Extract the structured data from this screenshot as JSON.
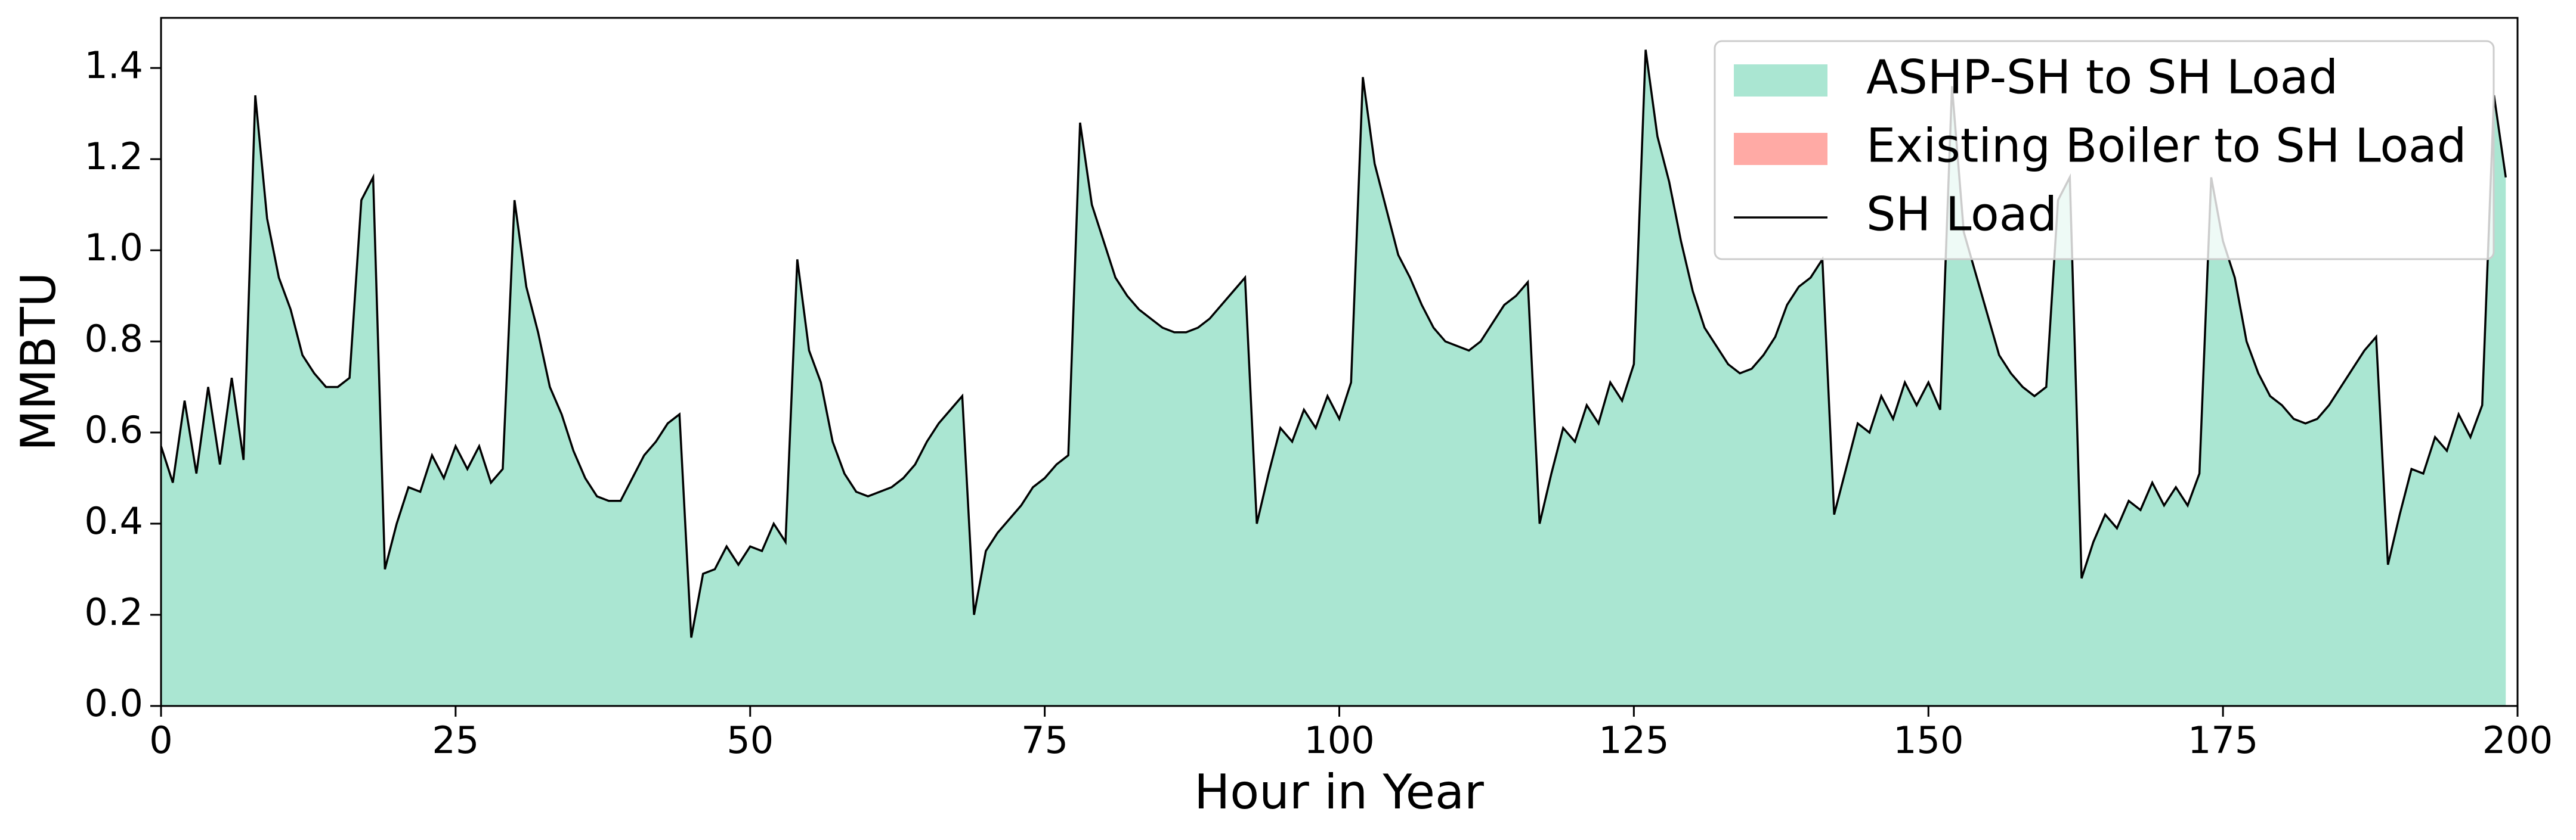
{
  "chart_data": {
    "type": "area",
    "xlabel": "Hour in Year",
    "ylabel": "MMBTU",
    "x": [
      0,
      1,
      2,
      3,
      4,
      5,
      6,
      7,
      8,
      9,
      10,
      11,
      12,
      13,
      14,
      15,
      16,
      17,
      18,
      19,
      20,
      21,
      22,
      23,
      24,
      25,
      26,
      27,
      28,
      29,
      30,
      31,
      32,
      33,
      34,
      35,
      36,
      37,
      38,
      39,
      40,
      41,
      42,
      43,
      44,
      45,
      46,
      47,
      48,
      49,
      50,
      51,
      52,
      53,
      54,
      55,
      56,
      57,
      58,
      59,
      60,
      61,
      62,
      63,
      64,
      65,
      66,
      67,
      68,
      69,
      70,
      71,
      72,
      73,
      74,
      75,
      76,
      77,
      78,
      79,
      80,
      81,
      82,
      83,
      84,
      85,
      86,
      87,
      88,
      89,
      90,
      91,
      92,
      93,
      94,
      95,
      96,
      97,
      98,
      99,
      100,
      101,
      102,
      103,
      104,
      105,
      106,
      107,
      108,
      109,
      110,
      111,
      112,
      113,
      114,
      115,
      116,
      117,
      118,
      119,
      120,
      121,
      122,
      123,
      124,
      125,
      126,
      127,
      128,
      129,
      130,
      131,
      132,
      133,
      134,
      135,
      136,
      137,
      138,
      139,
      140,
      141,
      142,
      143,
      144,
      145,
      146,
      147,
      148,
      149,
      150,
      151,
      152,
      153,
      154,
      155,
      156,
      157,
      158,
      159,
      160,
      161,
      162,
      163,
      164,
      165,
      166,
      167,
      168,
      169,
      170,
      171,
      172,
      173,
      174,
      175,
      176,
      177,
      178,
      179,
      180,
      181,
      182,
      183,
      184,
      185,
      186,
      187,
      188,
      189,
      190,
      191,
      192,
      193,
      194,
      195,
      196,
      197,
      198,
      199
    ],
    "series": [
      {
        "name": "ASHP-SH to SH Load",
        "style": "area",
        "color": "#aae6d2",
        "values": [
          0.57,
          0.49,
          0.67,
          0.51,
          0.7,
          0.53,
          0.72,
          0.54,
          1.34,
          1.07,
          0.94,
          0.87,
          0.77,
          0.73,
          0.7,
          0.7,
          0.72,
          1.11,
          1.16,
          0.3,
          0.4,
          0.48,
          0.47,
          0.55,
          0.5,
          0.57,
          0.52,
          0.57,
          0.49,
          0.52,
          1.11,
          0.92,
          0.82,
          0.7,
          0.64,
          0.56,
          0.5,
          0.46,
          0.45,
          0.45,
          0.5,
          0.55,
          0.58,
          0.62,
          0.64,
          0.15,
          0.29,
          0.3,
          0.35,
          0.31,
          0.35,
          0.34,
          0.4,
          0.36,
          0.98,
          0.78,
          0.71,
          0.58,
          0.51,
          0.47,
          0.46,
          0.47,
          0.48,
          0.5,
          0.53,
          0.58,
          0.62,
          0.65,
          0.68,
          0.2,
          0.34,
          0.38,
          0.41,
          0.44,
          0.48,
          0.5,
          0.53,
          0.55,
          1.28,
          1.1,
          1.02,
          0.94,
          0.9,
          0.87,
          0.85,
          0.83,
          0.82,
          0.82,
          0.83,
          0.85,
          0.88,
          0.91,
          0.94,
          0.4,
          0.51,
          0.61,
          0.58,
          0.65,
          0.61,
          0.68,
          0.63,
          0.71,
          1.38,
          1.19,
          1.09,
          0.99,
          0.94,
          0.88,
          0.83,
          0.8,
          0.79,
          0.78,
          0.8,
          0.84,
          0.88,
          0.9,
          0.93,
          0.4,
          0.51,
          0.61,
          0.58,
          0.66,
          0.62,
          0.71,
          0.67,
          0.75,
          1.44,
          1.25,
          1.15,
          1.02,
          0.91,
          0.83,
          0.79,
          0.75,
          0.73,
          0.74,
          0.77,
          0.81,
          0.88,
          0.92,
          0.94,
          0.98,
          0.42,
          0.52,
          0.62,
          0.6,
          0.68,
          0.63,
          0.71,
          0.66,
          0.71,
          0.65,
          1.36,
          1.04,
          0.95,
          0.86,
          0.77,
          0.73,
          0.7,
          0.68,
          0.7,
          1.11,
          1.16,
          0.28,
          0.36,
          0.42,
          0.39,
          0.45,
          0.43,
          0.49,
          0.44,
          0.48,
          0.44,
          0.51,
          1.16,
          1.02,
          0.94,
          0.8,
          0.73,
          0.68,
          0.66,
          0.63,
          0.62,
          0.63,
          0.66,
          0.7,
          0.74,
          0.78,
          0.81,
          0.31,
          0.42,
          0.52,
          0.51,
          0.59,
          0.56,
          0.64,
          0.59,
          0.66,
          1.34,
          1.16
        ]
      },
      {
        "name": "Existing Boiler to SH Load",
        "style": "area",
        "color": "#ffaaa5",
        "values": [
          0,
          0,
          0,
          0,
          0,
          0,
          0,
          0,
          0,
          0,
          0,
          0,
          0,
          0,
          0,
          0,
          0,
          0,
          0,
          0,
          0,
          0,
          0,
          0,
          0,
          0,
          0,
          0,
          0,
          0,
          0,
          0,
          0,
          0,
          0,
          0,
          0,
          0,
          0,
          0,
          0,
          0,
          0,
          0,
          0,
          0,
          0,
          0,
          0,
          0,
          0,
          0,
          0,
          0,
          0,
          0,
          0,
          0,
          0,
          0,
          0,
          0,
          0,
          0,
          0,
          0,
          0,
          0,
          0,
          0,
          0,
          0,
          0,
          0,
          0,
          0,
          0,
          0,
          0,
          0,
          0,
          0,
          0,
          0,
          0,
          0,
          0,
          0,
          0,
          0,
          0,
          0,
          0,
          0,
          0,
          0,
          0,
          0,
          0,
          0,
          0,
          0,
          0,
          0,
          0,
          0,
          0,
          0,
          0,
          0,
          0,
          0,
          0,
          0,
          0,
          0,
          0,
          0,
          0,
          0,
          0,
          0,
          0,
          0,
          0,
          0,
          0,
          0,
          0,
          0,
          0,
          0,
          0,
          0,
          0,
          0,
          0,
          0,
          0,
          0,
          0,
          0,
          0,
          0,
          0,
          0,
          0,
          0,
          0,
          0,
          0,
          0,
          0,
          0,
          0,
          0,
          0,
          0,
          0,
          0,
          0,
          0,
          0,
          0,
          0,
          0,
          0,
          0,
          0,
          0,
          0,
          0,
          0,
          0,
          0,
          0,
          0,
          0,
          0,
          0,
          0,
          0,
          0,
          0,
          0,
          0,
          0,
          0,
          0,
          0,
          0,
          0,
          0,
          0,
          0,
          0,
          0,
          0,
          0,
          0
        ]
      },
      {
        "name": "SH Load",
        "style": "line",
        "color": "#000000",
        "values": [
          0.57,
          0.49,
          0.67,
          0.51,
          0.7,
          0.53,
          0.72,
          0.54,
          1.34,
          1.07,
          0.94,
          0.87,
          0.77,
          0.73,
          0.7,
          0.7,
          0.72,
          1.11,
          1.16,
          0.3,
          0.4,
          0.48,
          0.47,
          0.55,
          0.5,
          0.57,
          0.52,
          0.57,
          0.49,
          0.52,
          1.11,
          0.92,
          0.82,
          0.7,
          0.64,
          0.56,
          0.5,
          0.46,
          0.45,
          0.45,
          0.5,
          0.55,
          0.58,
          0.62,
          0.64,
          0.15,
          0.29,
          0.3,
          0.35,
          0.31,
          0.35,
          0.34,
          0.4,
          0.36,
          0.98,
          0.78,
          0.71,
          0.58,
          0.51,
          0.47,
          0.46,
          0.47,
          0.48,
          0.5,
          0.53,
          0.58,
          0.62,
          0.65,
          0.68,
          0.2,
          0.34,
          0.38,
          0.41,
          0.44,
          0.48,
          0.5,
          0.53,
          0.55,
          1.28,
          1.1,
          1.02,
          0.94,
          0.9,
          0.87,
          0.85,
          0.83,
          0.82,
          0.82,
          0.83,
          0.85,
          0.88,
          0.91,
          0.94,
          0.4,
          0.51,
          0.61,
          0.58,
          0.65,
          0.61,
          0.68,
          0.63,
          0.71,
          1.38,
          1.19,
          1.09,
          0.99,
          0.94,
          0.88,
          0.83,
          0.8,
          0.79,
          0.78,
          0.8,
          0.84,
          0.88,
          0.9,
          0.93,
          0.4,
          0.51,
          0.61,
          0.58,
          0.66,
          0.62,
          0.71,
          0.67,
          0.75,
          1.44,
          1.25,
          1.15,
          1.02,
          0.91,
          0.83,
          0.79,
          0.75,
          0.73,
          0.74,
          0.77,
          0.81,
          0.88,
          0.92,
          0.94,
          0.98,
          0.42,
          0.52,
          0.62,
          0.6,
          0.68,
          0.63,
          0.71,
          0.66,
          0.71,
          0.65,
          1.36,
          1.04,
          0.95,
          0.86,
          0.77,
          0.73,
          0.7,
          0.68,
          0.7,
          1.11,
          1.16,
          0.28,
          0.36,
          0.42,
          0.39,
          0.45,
          0.43,
          0.49,
          0.44,
          0.48,
          0.44,
          0.51,
          1.16,
          1.02,
          0.94,
          0.8,
          0.73,
          0.68,
          0.66,
          0.63,
          0.62,
          0.63,
          0.66,
          0.7,
          0.74,
          0.78,
          0.81,
          0.31,
          0.42,
          0.52,
          0.51,
          0.59,
          0.56,
          0.64,
          0.59,
          0.66,
          1.34,
          1.16
        ]
      }
    ],
    "xlim": [
      0,
      200
    ],
    "xticks": [
      0,
      25,
      50,
      75,
      100,
      125,
      150,
      175,
      200
    ],
    "ylim": [
      0,
      1.51
    ],
    "yticks": [
      {
        "value": 0,
        "label": "0.0"
      },
      {
        "value": 0.2,
        "label": "0.2"
      },
      {
        "value": 0.4,
        "label": "0.4"
      },
      {
        "value": 0.6,
        "label": "0.6"
      },
      {
        "value": 0.8,
        "label": "0.8"
      },
      {
        "value": 1.0,
        "label": "1.0"
      },
      {
        "value": 1.2,
        "label": "1.2"
      },
      {
        "value": 1.4,
        "label": "1.4"
      }
    ],
    "legend": "upper right",
    "grid": false
  }
}
